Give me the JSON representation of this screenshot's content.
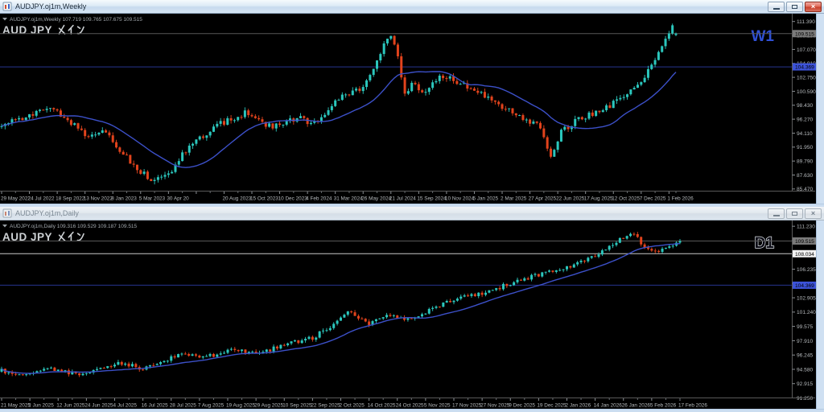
{
  "windows": [
    {
      "title": "AUDJPY.oj1m,Weekly",
      "active": true,
      "info_line": "AUDJPY.oj1m,Weekly  107.719 109.765 107.675 109.515",
      "symbol_text": "AUD JPY",
      "symbol_label": "AUD JPY メイン",
      "timeframe_badge": "W1",
      "buttons": [
        "minimize",
        "restore",
        "close"
      ]
    },
    {
      "title": "AUDJPY.oj1m,Daily",
      "active": false,
      "info_line": "AUDJPY.oj1m,Daily  109.316 109.529 109.187 109.515",
      "symbol_text": "AUD JPY",
      "symbol_label": "AUD JPY メイン",
      "timeframe_badge": "D1",
      "buttons": [
        "minimize",
        "restore",
        "close"
      ]
    }
  ],
  "chart_data": [
    {
      "type": "candlestick",
      "title": "AUDJPY.oj1m Weekly",
      "symbol": "AUDJPY.oj1m",
      "timeframe": "Weekly",
      "ohlc": {
        "open": 107.719,
        "high": 109.765,
        "low": 107.675,
        "close": 109.515
      },
      "current_price": 109.515,
      "y_min": 85.2,
      "y_max": 112.6,
      "y_ticks": [
        111.39,
        109.23,
        107.07,
        104.91,
        102.75,
        100.59,
        98.43,
        96.27,
        94.11,
        91.95,
        89.79,
        87.63,
        85.47
      ],
      "x_labels": [
        "29 May 2022",
        "24 Jul 2022",
        "18 Sep 2022",
        "13 Nov 2022",
        "8 Jan 2023",
        "5 Mar 2023",
        "30 Apr 20",
        "",
        "20 Aug 2023",
        "15 Oct 2023",
        "10 Dec 2023",
        "4 Feb 2024",
        "31 Mar 2024",
        "26 May 2024",
        "21 Jul 2024",
        "15 Sep 2024",
        "10 Nov 2024",
        "5 Jan 2025",
        "2 Mar 2025",
        "27 Apr 2025",
        "22 Jun 2025",
        "17 Aug 2025",
        "12 Oct 2025",
        "7 Dec 2025",
        "1 Feb 2026"
      ],
      "label_every": 8,
      "num_candles": 195,
      "levels": [
        {
          "name": "bid-price-line",
          "price": 109.515,
          "line_color": "#585858",
          "box_bg": "#7b7b7b",
          "box_fg": "#000000"
        },
        {
          "name": "horizontal-line-blue",
          "price": 104.369,
          "line_color": "#27348f",
          "box_bg": "#3c53d9",
          "box_fg": "#000000"
        }
      ],
      "ma_period": 20,
      "volatility": 0.95,
      "seed": 20220529,
      "colors": {
        "bull": "#2bc7bd",
        "bear": "#e2431c",
        "ma": "#3c50c8",
        "axis_text": "#b6babd",
        "background": "#000000"
      },
      "anchors": [
        [
          0,
          95.2
        ],
        [
          0.045,
          97.2
        ],
        [
          0.07,
          98.2
        ],
        [
          0.1,
          96.0
        ],
        [
          0.13,
          93.6
        ],
        [
          0.155,
          94.6
        ],
        [
          0.175,
          91.6
        ],
        [
          0.2,
          88.6
        ],
        [
          0.225,
          86.9
        ],
        [
          0.25,
          88.2
        ],
        [
          0.28,
          92.4
        ],
        [
          0.32,
          95.4
        ],
        [
          0.36,
          97.2
        ],
        [
          0.4,
          95.0
        ],
        [
          0.44,
          96.6
        ],
        [
          0.46,
          95.2
        ],
        [
          0.5,
          99.4
        ],
        [
          0.54,
          101.6
        ],
        [
          0.565,
          107.4
        ],
        [
          0.576,
          109.4
        ],
        [
          0.588,
          106.0
        ],
        [
          0.597,
          99.8
        ],
        [
          0.61,
          102.2
        ],
        [
          0.627,
          100.2
        ],
        [
          0.65,
          103.2
        ],
        [
          0.67,
          102.4
        ],
        [
          0.7,
          101.0
        ],
        [
          0.73,
          99.0
        ],
        [
          0.76,
          97.2
        ],
        [
          0.78,
          95.8
        ],
        [
          0.8,
          95.2
        ],
        [
          0.814,
          90.6
        ],
        [
          0.83,
          94.4
        ],
        [
          0.86,
          96.6
        ],
        [
          0.89,
          97.6
        ],
        [
          0.92,
          99.6
        ],
        [
          0.95,
          102.6
        ],
        [
          0.97,
          105.4
        ],
        [
          0.985,
          108.6
        ],
        [
          0.995,
          110.6
        ],
        [
          1,
          109.5
        ]
      ]
    },
    {
      "type": "candlestick",
      "title": "AUDJPY.oj1m Daily",
      "symbol": "AUDJPY.oj1m",
      "timeframe": "Daily",
      "ohlc": {
        "open": 109.316,
        "high": 109.529,
        "low": 109.187,
        "close": 109.515
      },
      "current_price": 109.515,
      "y_min": 91.3,
      "y_max": 111.9,
      "y_ticks": [
        111.23,
        109.565,
        107.9,
        106.235,
        104.57,
        102.905,
        101.24,
        99.575,
        97.91,
        96.245,
        94.58,
        92.915,
        91.25
      ],
      "x_labels": [
        "21 May 2025",
        "2 Jun 2025",
        "12 Jun 2025",
        "24 Jun 2025",
        "4 Jul 2025",
        "16 Jul 2025",
        "28 Jul 2025",
        "7 Aug 2025",
        "19 Aug 2025",
        "29 Aug 2025",
        "10 Sep 2025",
        "22 Sep 2025",
        "2 Oct 2025",
        "14 Oct 2025",
        "24 Oct 2025",
        "5 Nov 2025",
        "17 Nov 2025",
        "27 Nov 2025",
        "9 Dec 2025",
        "19 Dec 2025",
        "2 Jan 2026",
        "14 Jan 2026",
        "26 Jan 2026",
        "5 Feb 2026",
        "17 Feb 2026"
      ],
      "label_every": 8,
      "num_candles": 193,
      "levels": [
        {
          "name": "bid-price-line",
          "price": 109.515,
          "line_color": "#585858",
          "box_bg": "#7b7b7b",
          "box_fg": "#000000"
        },
        {
          "name": "horizontal-line-white",
          "price": 108.034,
          "line_color": "#c9c9c9",
          "box_bg": "#f3f3f3",
          "box_fg": "#000000"
        },
        {
          "name": "horizontal-line-blue",
          "price": 104.369,
          "line_color": "#27348f",
          "box_bg": "#3c53d9",
          "box_fg": "#000000"
        }
      ],
      "ma_period": 20,
      "volatility": 0.5,
      "seed": 20250521,
      "colors": {
        "bull": "#2bc7bd",
        "bear": "#e2431c",
        "ma": "#3c50c8",
        "axis_text": "#b6babd",
        "background": "#000000"
      },
      "anchors": [
        [
          0,
          94.4
        ],
        [
          0.03,
          93.7
        ],
        [
          0.07,
          94.6
        ],
        [
          0.12,
          93.9
        ],
        [
          0.17,
          95.3
        ],
        [
          0.21,
          94.7
        ],
        [
          0.26,
          96.2
        ],
        [
          0.3,
          96.0
        ],
        [
          0.34,
          96.9
        ],
        [
          0.38,
          96.5
        ],
        [
          0.42,
          97.5
        ],
        [
          0.46,
          98.3
        ],
        [
          0.5,
          100.4
        ],
        [
          0.515,
          101.4
        ],
        [
          0.54,
          99.7
        ],
        [
          0.57,
          100.9
        ],
        [
          0.6,
          100.3
        ],
        [
          0.64,
          101.9
        ],
        [
          0.68,
          102.9
        ],
        [
          0.72,
          103.7
        ],
        [
          0.76,
          104.9
        ],
        [
          0.8,
          105.7
        ],
        [
          0.84,
          106.6
        ],
        [
          0.88,
          107.9
        ],
        [
          0.915,
          109.9
        ],
        [
          0.93,
          110.4
        ],
        [
          0.95,
          108.7
        ],
        [
          0.97,
          108.4
        ],
        [
          1,
          109.5
        ]
      ]
    }
  ]
}
